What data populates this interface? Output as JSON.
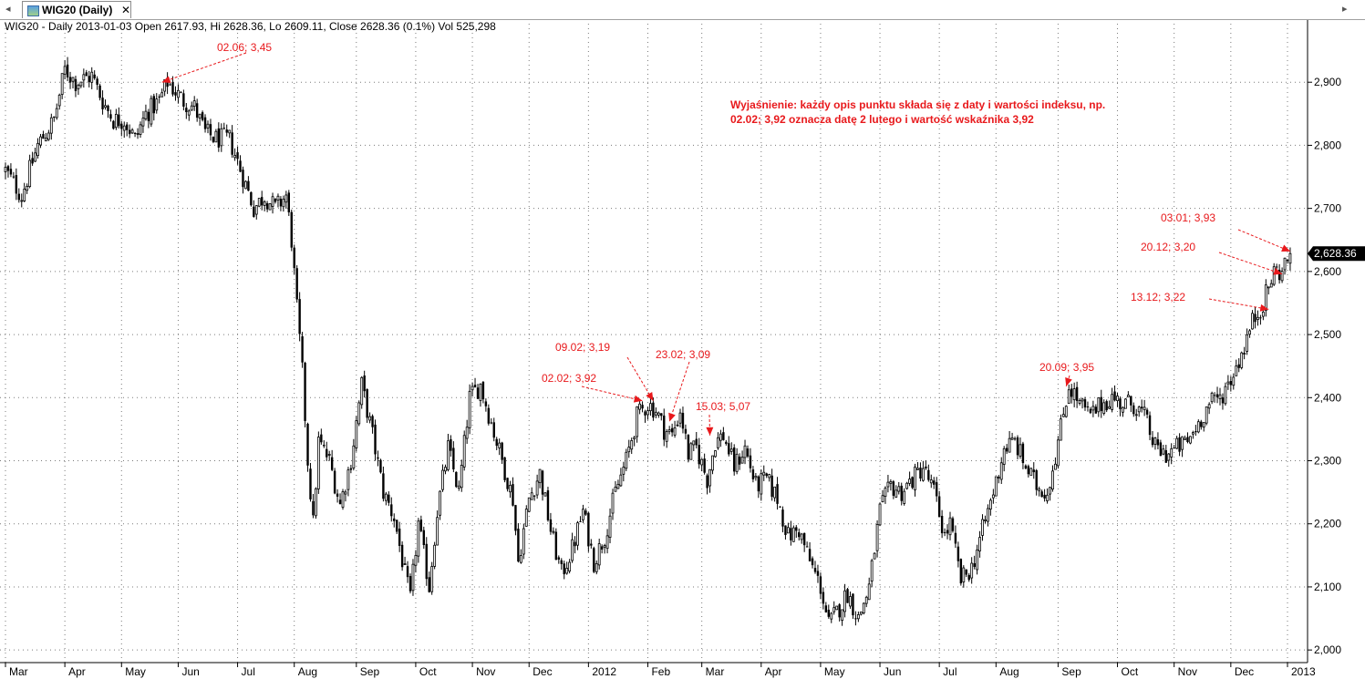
{
  "tab": {
    "icon": "chart-window-icon",
    "label": "WIG20 (Daily)",
    "close": "✕"
  },
  "info_line": "WIG20 - Daily 2013-01-03 Open 2617.93, Hi 2628.36, Lo 2609.11, Close 2628.36 (0.1%) Vol 525,298",
  "explanation": {
    "line1": "Wyjaśnienie: każdy opis punktu składa się z daty i wartości indeksu, np.",
    "line2": "02.02; 3,92 oznacza datę 2 lutego i wartość wskaźnika 3,92"
  },
  "colors": {
    "annotation": "#e8191c",
    "candle": "#000000",
    "price_tag_bg": "#000000",
    "grid": "#7a7a7a"
  },
  "chart_data": {
    "type": "candlestick",
    "symbol": "WIG20",
    "timeframe": "Daily",
    "ylim": [
      1980,
      3000
    ],
    "y_ticks": [
      2000,
      2100,
      2200,
      2300,
      2400,
      2500,
      2600,
      2700,
      2800,
      2900
    ],
    "y_tick_labels": [
      "2,000",
      "2,100",
      "2,200",
      "2,300",
      "2,400",
      "2,500",
      "2,600",
      "2,700",
      "2,800",
      "2,900"
    ],
    "x_tick_labels": [
      "Mar",
      "Apr",
      "May",
      "Jun",
      "Jul",
      "Aug",
      "Sep",
      "Oct",
      "Nov",
      "Dec",
      "2012",
      "Feb",
      "Mar",
      "Apr",
      "May",
      "Jun",
      "Jul",
      "Aug",
      "Sep",
      "Oct",
      "Nov",
      "Dec",
      "2013"
    ],
    "x_tick_index": [
      0,
      22,
      43,
      64,
      86,
      107,
      130,
      152,
      173,
      194,
      216,
      238,
      258,
      280,
      302,
      324,
      346,
      367,
      390,
      412,
      433,
      454,
      475
    ],
    "last_price": 2628.36,
    "last_price_label": "2,628.36",
    "close_anchors": [
      {
        "i": 0,
        "close": 2760
      },
      {
        "i": 6,
        "close": 2720
      },
      {
        "i": 12,
        "close": 2800
      },
      {
        "i": 18,
        "close": 2840
      },
      {
        "i": 22,
        "close": 2920
      },
      {
        "i": 26,
        "close": 2900
      },
      {
        "i": 32,
        "close": 2910
      },
      {
        "i": 36,
        "close": 2870
      },
      {
        "i": 40,
        "close": 2840
      },
      {
        "i": 44,
        "close": 2840
      },
      {
        "i": 48,
        "close": 2810
      },
      {
        "i": 52,
        "close": 2850
      },
      {
        "i": 57,
        "close": 2870
      },
      {
        "i": 60,
        "close": 2900
      },
      {
        "i": 66,
        "close": 2870
      },
      {
        "i": 70,
        "close": 2860
      },
      {
        "i": 74,
        "close": 2820
      },
      {
        "i": 78,
        "close": 2810
      },
      {
        "i": 83,
        "close": 2810
      },
      {
        "i": 88,
        "close": 2750
      },
      {
        "i": 92,
        "close": 2700
      },
      {
        "i": 96,
        "close": 2720
      },
      {
        "i": 100,
        "close": 2700
      },
      {
        "i": 104,
        "close": 2720
      },
      {
        "i": 106,
        "close": 2650
      },
      {
        "i": 108,
        "close": 2540
      },
      {
        "i": 110,
        "close": 2440
      },
      {
        "i": 112,
        "close": 2300
      },
      {
        "i": 114,
        "close": 2200
      },
      {
        "i": 116,
        "close": 2330
      },
      {
        "i": 120,
        "close": 2300
      },
      {
        "i": 124,
        "close": 2230
      },
      {
        "i": 128,
        "close": 2300
      },
      {
        "i": 132,
        "close": 2420
      },
      {
        "i": 136,
        "close": 2340
      },
      {
        "i": 140,
        "close": 2250
      },
      {
        "i": 144,
        "close": 2210
      },
      {
        "i": 148,
        "close": 2120
      },
      {
        "i": 150,
        "close": 2080
      },
      {
        "i": 153,
        "close": 2200
      },
      {
        "i": 157,
        "close": 2100
      },
      {
        "i": 160,
        "close": 2220
      },
      {
        "i": 164,
        "close": 2320
      },
      {
        "i": 168,
        "close": 2250
      },
      {
        "i": 172,
        "close": 2400
      },
      {
        "i": 176,
        "close": 2420
      },
      {
        "i": 180,
        "close": 2360
      },
      {
        "i": 184,
        "close": 2300
      },
      {
        "i": 188,
        "close": 2240
      },
      {
        "i": 190,
        "close": 2140
      },
      {
        "i": 194,
        "close": 2240
      },
      {
        "i": 198,
        "close": 2280
      },
      {
        "i": 202,
        "close": 2190
      },
      {
        "i": 206,
        "close": 2120
      },
      {
        "i": 210,
        "close": 2160
      },
      {
        "i": 214,
        "close": 2220
      },
      {
        "i": 218,
        "close": 2140
      },
      {
        "i": 222,
        "close": 2180
      },
      {
        "i": 226,
        "close": 2250
      },
      {
        "i": 230,
        "close": 2300
      },
      {
        "i": 234,
        "close": 2370
      },
      {
        "i": 238,
        "close": 2390
      },
      {
        "i": 241,
        "close": 2380
      },
      {
        "i": 244,
        "close": 2350
      },
      {
        "i": 247,
        "close": 2340
      },
      {
        "i": 250,
        "close": 2380
      },
      {
        "i": 253,
        "close": 2310
      },
      {
        "i": 256,
        "close": 2320
      },
      {
        "i": 260,
        "close": 2270
      },
      {
        "i": 263,
        "close": 2330
      },
      {
        "i": 266,
        "close": 2340
      },
      {
        "i": 270,
        "close": 2290
      },
      {
        "i": 274,
        "close": 2320
      },
      {
        "i": 278,
        "close": 2260
      },
      {
        "i": 282,
        "close": 2270
      },
      {
        "i": 286,
        "close": 2240
      },
      {
        "i": 290,
        "close": 2180
      },
      {
        "i": 294,
        "close": 2190
      },
      {
        "i": 298,
        "close": 2140
      },
      {
        "i": 302,
        "close": 2100
      },
      {
        "i": 305,
        "close": 2040
      },
      {
        "i": 308,
        "close": 2060
      },
      {
        "i": 312,
        "close": 2090
      },
      {
        "i": 316,
        "close": 2050
      },
      {
        "i": 320,
        "close": 2100
      },
      {
        "i": 324,
        "close": 2220
      },
      {
        "i": 328,
        "close": 2260
      },
      {
        "i": 332,
        "close": 2250
      },
      {
        "i": 336,
        "close": 2270
      },
      {
        "i": 340,
        "close": 2290
      },
      {
        "i": 344,
        "close": 2250
      },
      {
        "i": 348,
        "close": 2180
      },
      {
        "i": 350,
        "close": 2200
      },
      {
        "i": 354,
        "close": 2110
      },
      {
        "i": 358,
        "close": 2130
      },
      {
        "i": 362,
        "close": 2190
      },
      {
        "i": 366,
        "close": 2250
      },
      {
        "i": 370,
        "close": 2320
      },
      {
        "i": 374,
        "close": 2330
      },
      {
        "i": 378,
        "close": 2290
      },
      {
        "i": 382,
        "close": 2260
      },
      {
        "i": 386,
        "close": 2250
      },
      {
        "i": 390,
        "close": 2330
      },
      {
        "i": 394,
        "close": 2420
      },
      {
        "i": 398,
        "close": 2390
      },
      {
        "i": 402,
        "close": 2370
      },
      {
        "i": 406,
        "close": 2390
      },
      {
        "i": 410,
        "close": 2400
      },
      {
        "i": 414,
        "close": 2390
      },
      {
        "i": 418,
        "close": 2390
      },
      {
        "i": 422,
        "close": 2370
      },
      {
        "i": 426,
        "close": 2320
      },
      {
        "i": 430,
        "close": 2310
      },
      {
        "i": 434,
        "close": 2320
      },
      {
        "i": 438,
        "close": 2330
      },
      {
        "i": 442,
        "close": 2360
      },
      {
        "i": 446,
        "close": 2390
      },
      {
        "i": 450,
        "close": 2400
      },
      {
        "i": 454,
        "close": 2430
      },
      {
        "i": 458,
        "close": 2470
      },
      {
        "i": 462,
        "close": 2520
      },
      {
        "i": 466,
        "close": 2550
      },
      {
        "i": 470,
        "close": 2600
      },
      {
        "i": 473,
        "close": 2600
      },
      {
        "i": 476,
        "close": 2628.36
      }
    ],
    "annotations": [
      {
        "label": "02.06; 3,45",
        "i": 58,
        "value": 2900
      },
      {
        "label": "02.02; 3,92",
        "i": 236,
        "value": 2395
      },
      {
        "label": "09.02; 3,19",
        "i": 240,
        "value": 2395
      },
      {
        "label": "23.02; 3,09",
        "i": 246,
        "value": 2362
      },
      {
        "label": "15.03; 5,07",
        "i": 261,
        "value": 2340
      },
      {
        "label": "20.09; 3,95",
        "i": 393,
        "value": 2418
      },
      {
        "label": "13.12; 3,22",
        "i": 468,
        "value": 2540
      },
      {
        "label": "20.12; 3,20",
        "i": 473,
        "value": 2596
      },
      {
        "label": "03.01; 3,93",
        "i": 476,
        "value": 2632
      }
    ]
  }
}
